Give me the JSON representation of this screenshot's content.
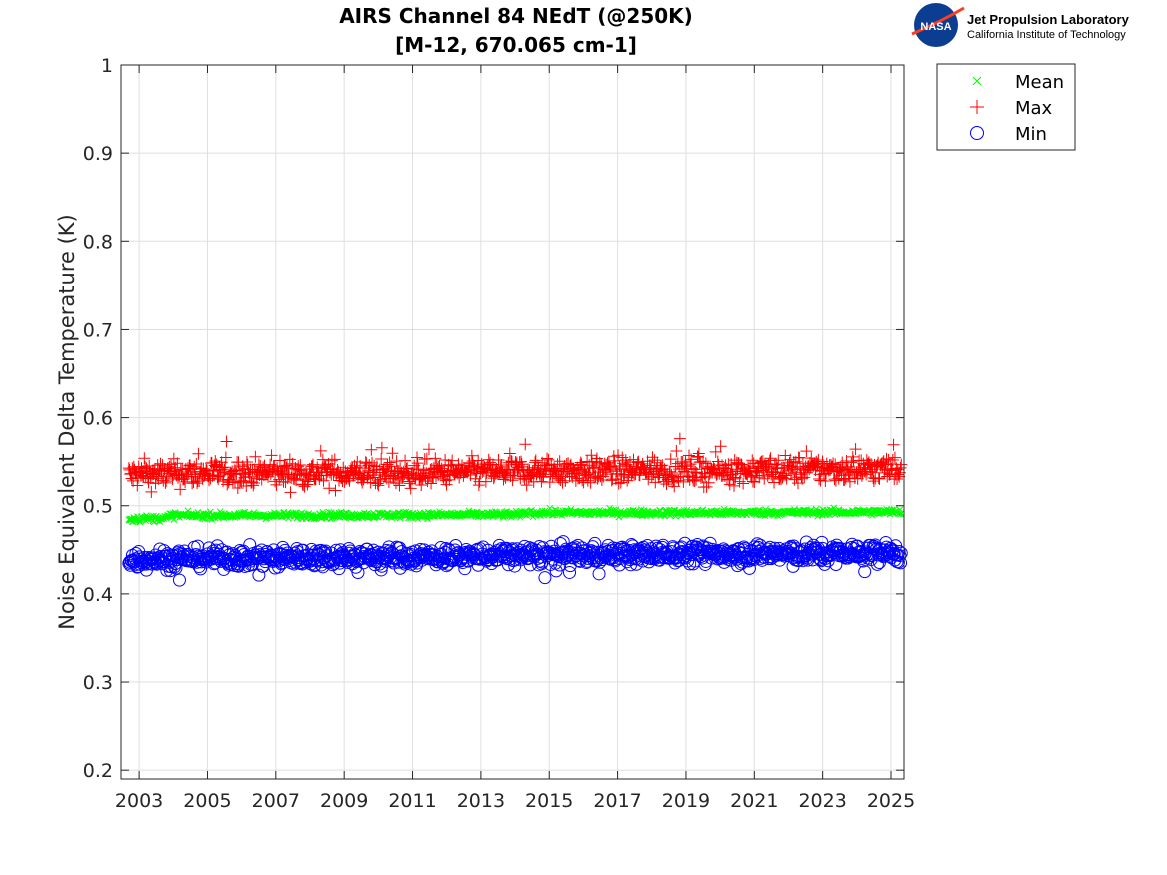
{
  "logo": {
    "text1": "Jet Propulsion Laboratory",
    "text2": "California Institute of Technology",
    "badge": "NASA"
  },
  "chart_data": {
    "type": "scatter",
    "title": [
      "AIRS Channel 84 NEdT (@250K)",
      "[M-12, 670.065 cm-1]"
    ],
    "xlabel": "",
    "ylabel": "Noise Equivalent Delta Temperature (K)",
    "xlim": [
      2002.47,
      2025.38
    ],
    "ylim": [
      0.19,
      1.0
    ],
    "xticks": [
      "2003",
      "2005",
      "2007",
      "2009",
      "2011",
      "2013",
      "2015",
      "2017",
      "2019",
      "2021",
      "2023",
      "2025"
    ],
    "yticks": [
      "0.2",
      "0.3",
      "0.4",
      "0.5",
      "0.6",
      "0.7",
      "0.8",
      "0.9",
      "1"
    ],
    "grid": true,
    "legend_position": "outside-top-right",
    "x_range_of_data": [
      2002.7,
      2025.3
    ],
    "series": [
      {
        "name": "Mean",
        "marker": "x",
        "color": "#00ff00",
        "x": [
          2002.7,
          2003.8,
          2003.9,
          2008,
          2014.2,
          2014.3,
          2020,
          2025.3
        ],
        "y": [
          0.485,
          0.486,
          0.489,
          0.489,
          0.49,
          0.492,
          0.492,
          0.493
        ]
      },
      {
        "name": "Max",
        "marker": "+",
        "color": "#ff0000",
        "x": [
          2002.7,
          2005,
          2008,
          2011,
          2014,
          2017,
          2020,
          2023,
          2025.3
        ],
        "y": [
          0.535,
          0.537,
          0.537,
          0.537,
          0.539,
          0.54,
          0.54,
          0.541,
          0.542
        ]
      },
      {
        "name": "Min",
        "marker": "o",
        "color": "#0000ff",
        "x": [
          2002.7,
          2005,
          2008,
          2011,
          2014,
          2017,
          2020,
          2023,
          2025.3
        ],
        "y": [
          0.439,
          0.441,
          0.442,
          0.442,
          0.444,
          0.445,
          0.446,
          0.446,
          0.447
        ]
      }
    ]
  }
}
